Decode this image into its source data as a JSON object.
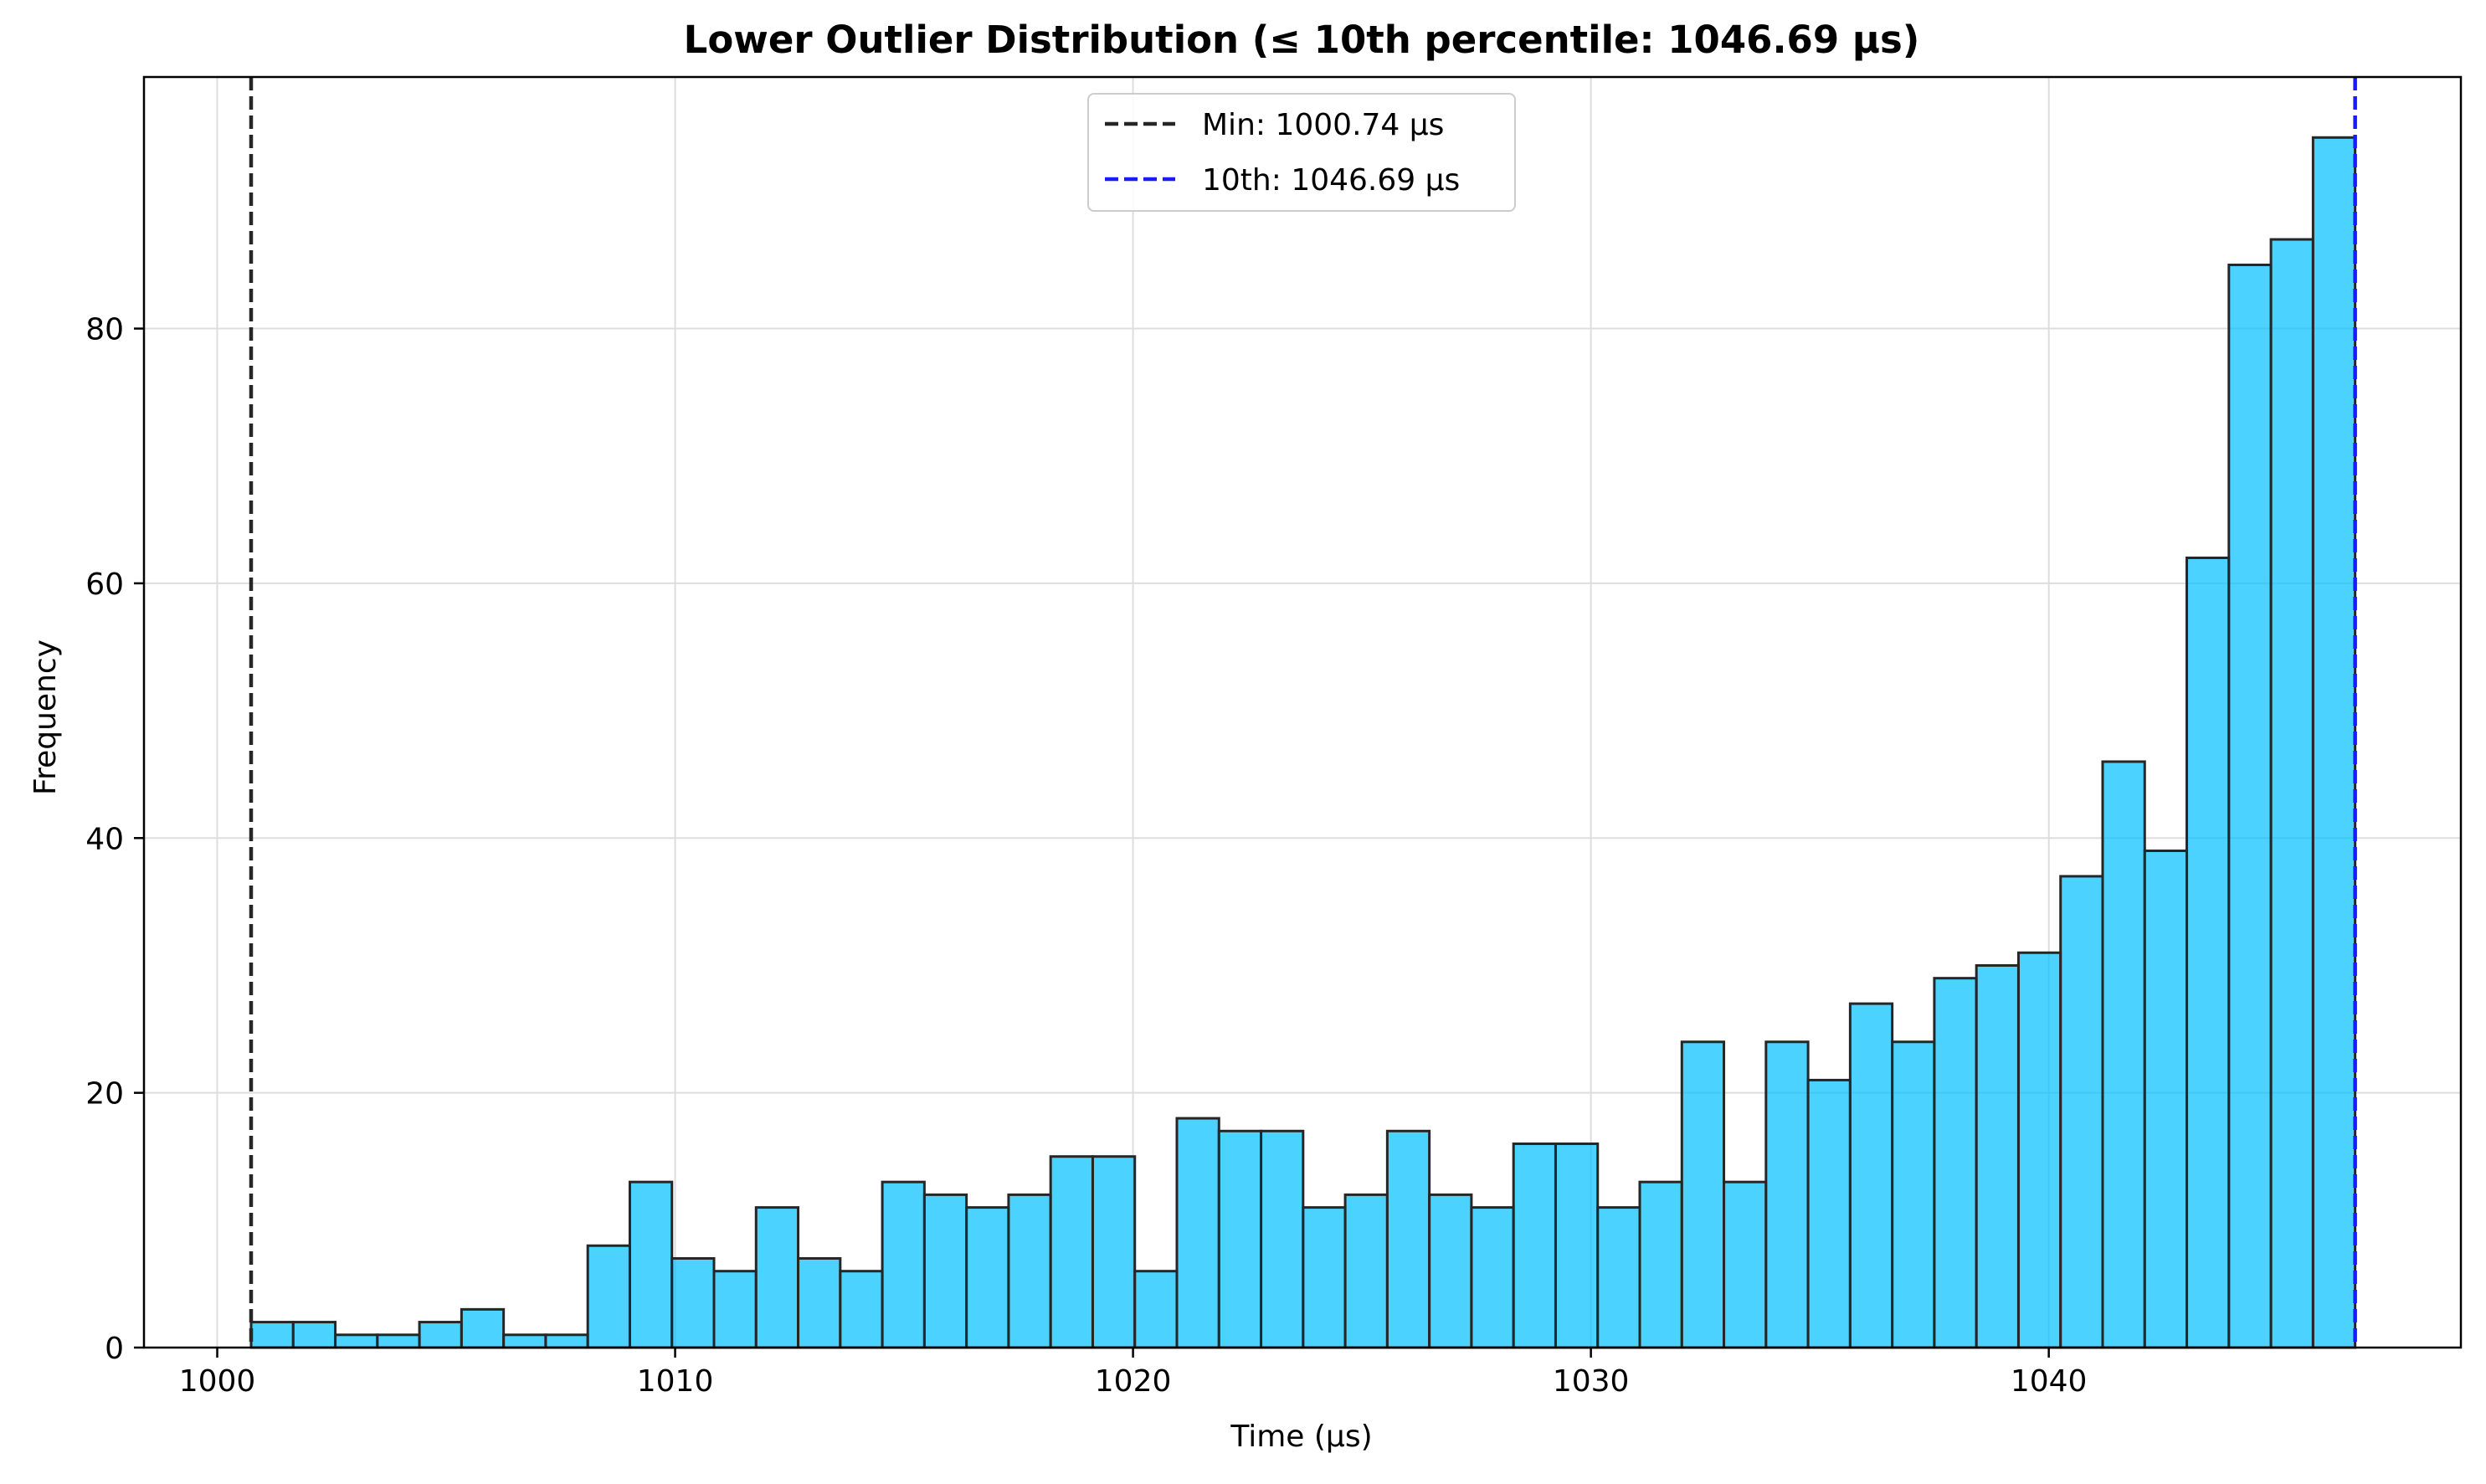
{
  "chart_data": {
    "type": "bar",
    "title": "Lower Outlier Distribution (≤ 10th percentile: 1046.69 µs)",
    "xlabel": "Time (µs)",
    "ylabel": "Frequency",
    "xlim": [
      998.4,
      1049.0
    ],
    "ylim": [
      0,
      99.75
    ],
    "xticks": [
      1000,
      1010,
      1020,
      1030,
      1040
    ],
    "yticks": [
      0,
      20,
      40,
      60,
      80
    ],
    "grid": true,
    "legend_position": "upper center",
    "bin_start": 1000.74,
    "bin_end": 1046.69,
    "bar_color": "#00bfff",
    "bar_edge_color": "#262626",
    "counts": [
      2,
      2,
      1,
      1,
      2,
      3,
      1,
      1,
      8,
      13,
      7,
      6,
      11,
      7,
      6,
      13,
      12,
      11,
      12,
      15,
      15,
      6,
      18,
      17,
      17,
      11,
      12,
      17,
      12,
      11,
      16,
      16,
      11,
      13,
      24,
      13,
      24,
      21,
      27,
      24,
      29,
      30,
      31,
      37,
      46,
      39,
      62,
      85,
      87,
      95
    ],
    "reference_lines": [
      {
        "label": "Min: 1000.74 µs",
        "x": 1000.74,
        "color": "#262626"
      },
      {
        "label": "10th: 1046.69 µs",
        "x": 1046.69,
        "color": "#1a1aff"
      }
    ]
  }
}
